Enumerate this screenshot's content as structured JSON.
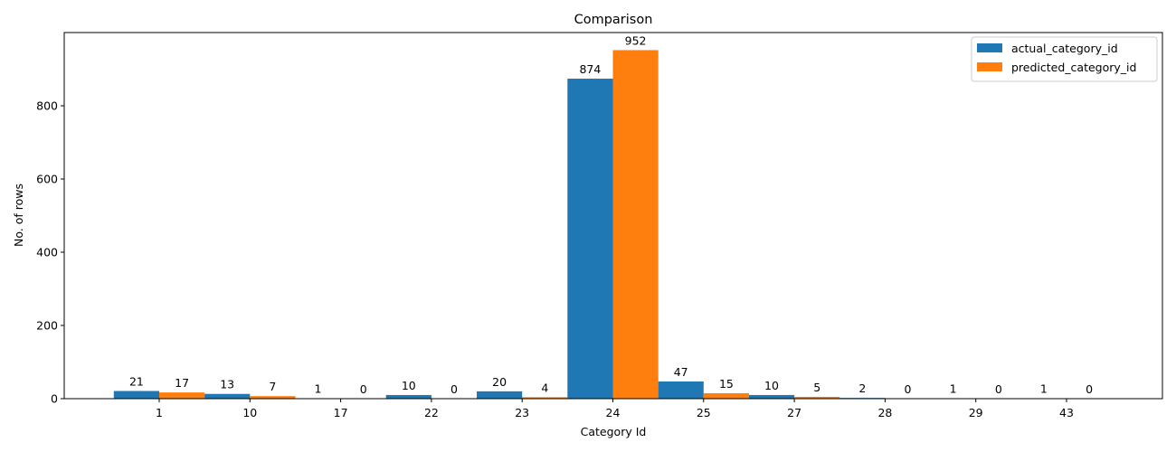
{
  "chart_data": {
    "type": "bar",
    "title": "Comparison",
    "xlabel": "Category Id",
    "ylabel": "No. of rows",
    "categories": [
      "1",
      "10",
      "17",
      "22",
      "23",
      "24",
      "25",
      "27",
      "28",
      "29",
      "43"
    ],
    "series": [
      {
        "name": "actual_category_id",
        "color": "#1f77b4",
        "values": [
          21,
          13,
          1,
          10,
          20,
          874,
          47,
          10,
          2,
          1,
          1
        ]
      },
      {
        "name": "predicted_category_id",
        "color": "#ff7f0e",
        "values": [
          17,
          7,
          0,
          0,
          4,
          952,
          15,
          5,
          0,
          0,
          0
        ]
      }
    ],
    "ylim": [
      0,
      1000
    ],
    "yticks": [
      0,
      200,
      400,
      600,
      800
    ],
    "grid": false,
    "legend_position": "top-right"
  }
}
